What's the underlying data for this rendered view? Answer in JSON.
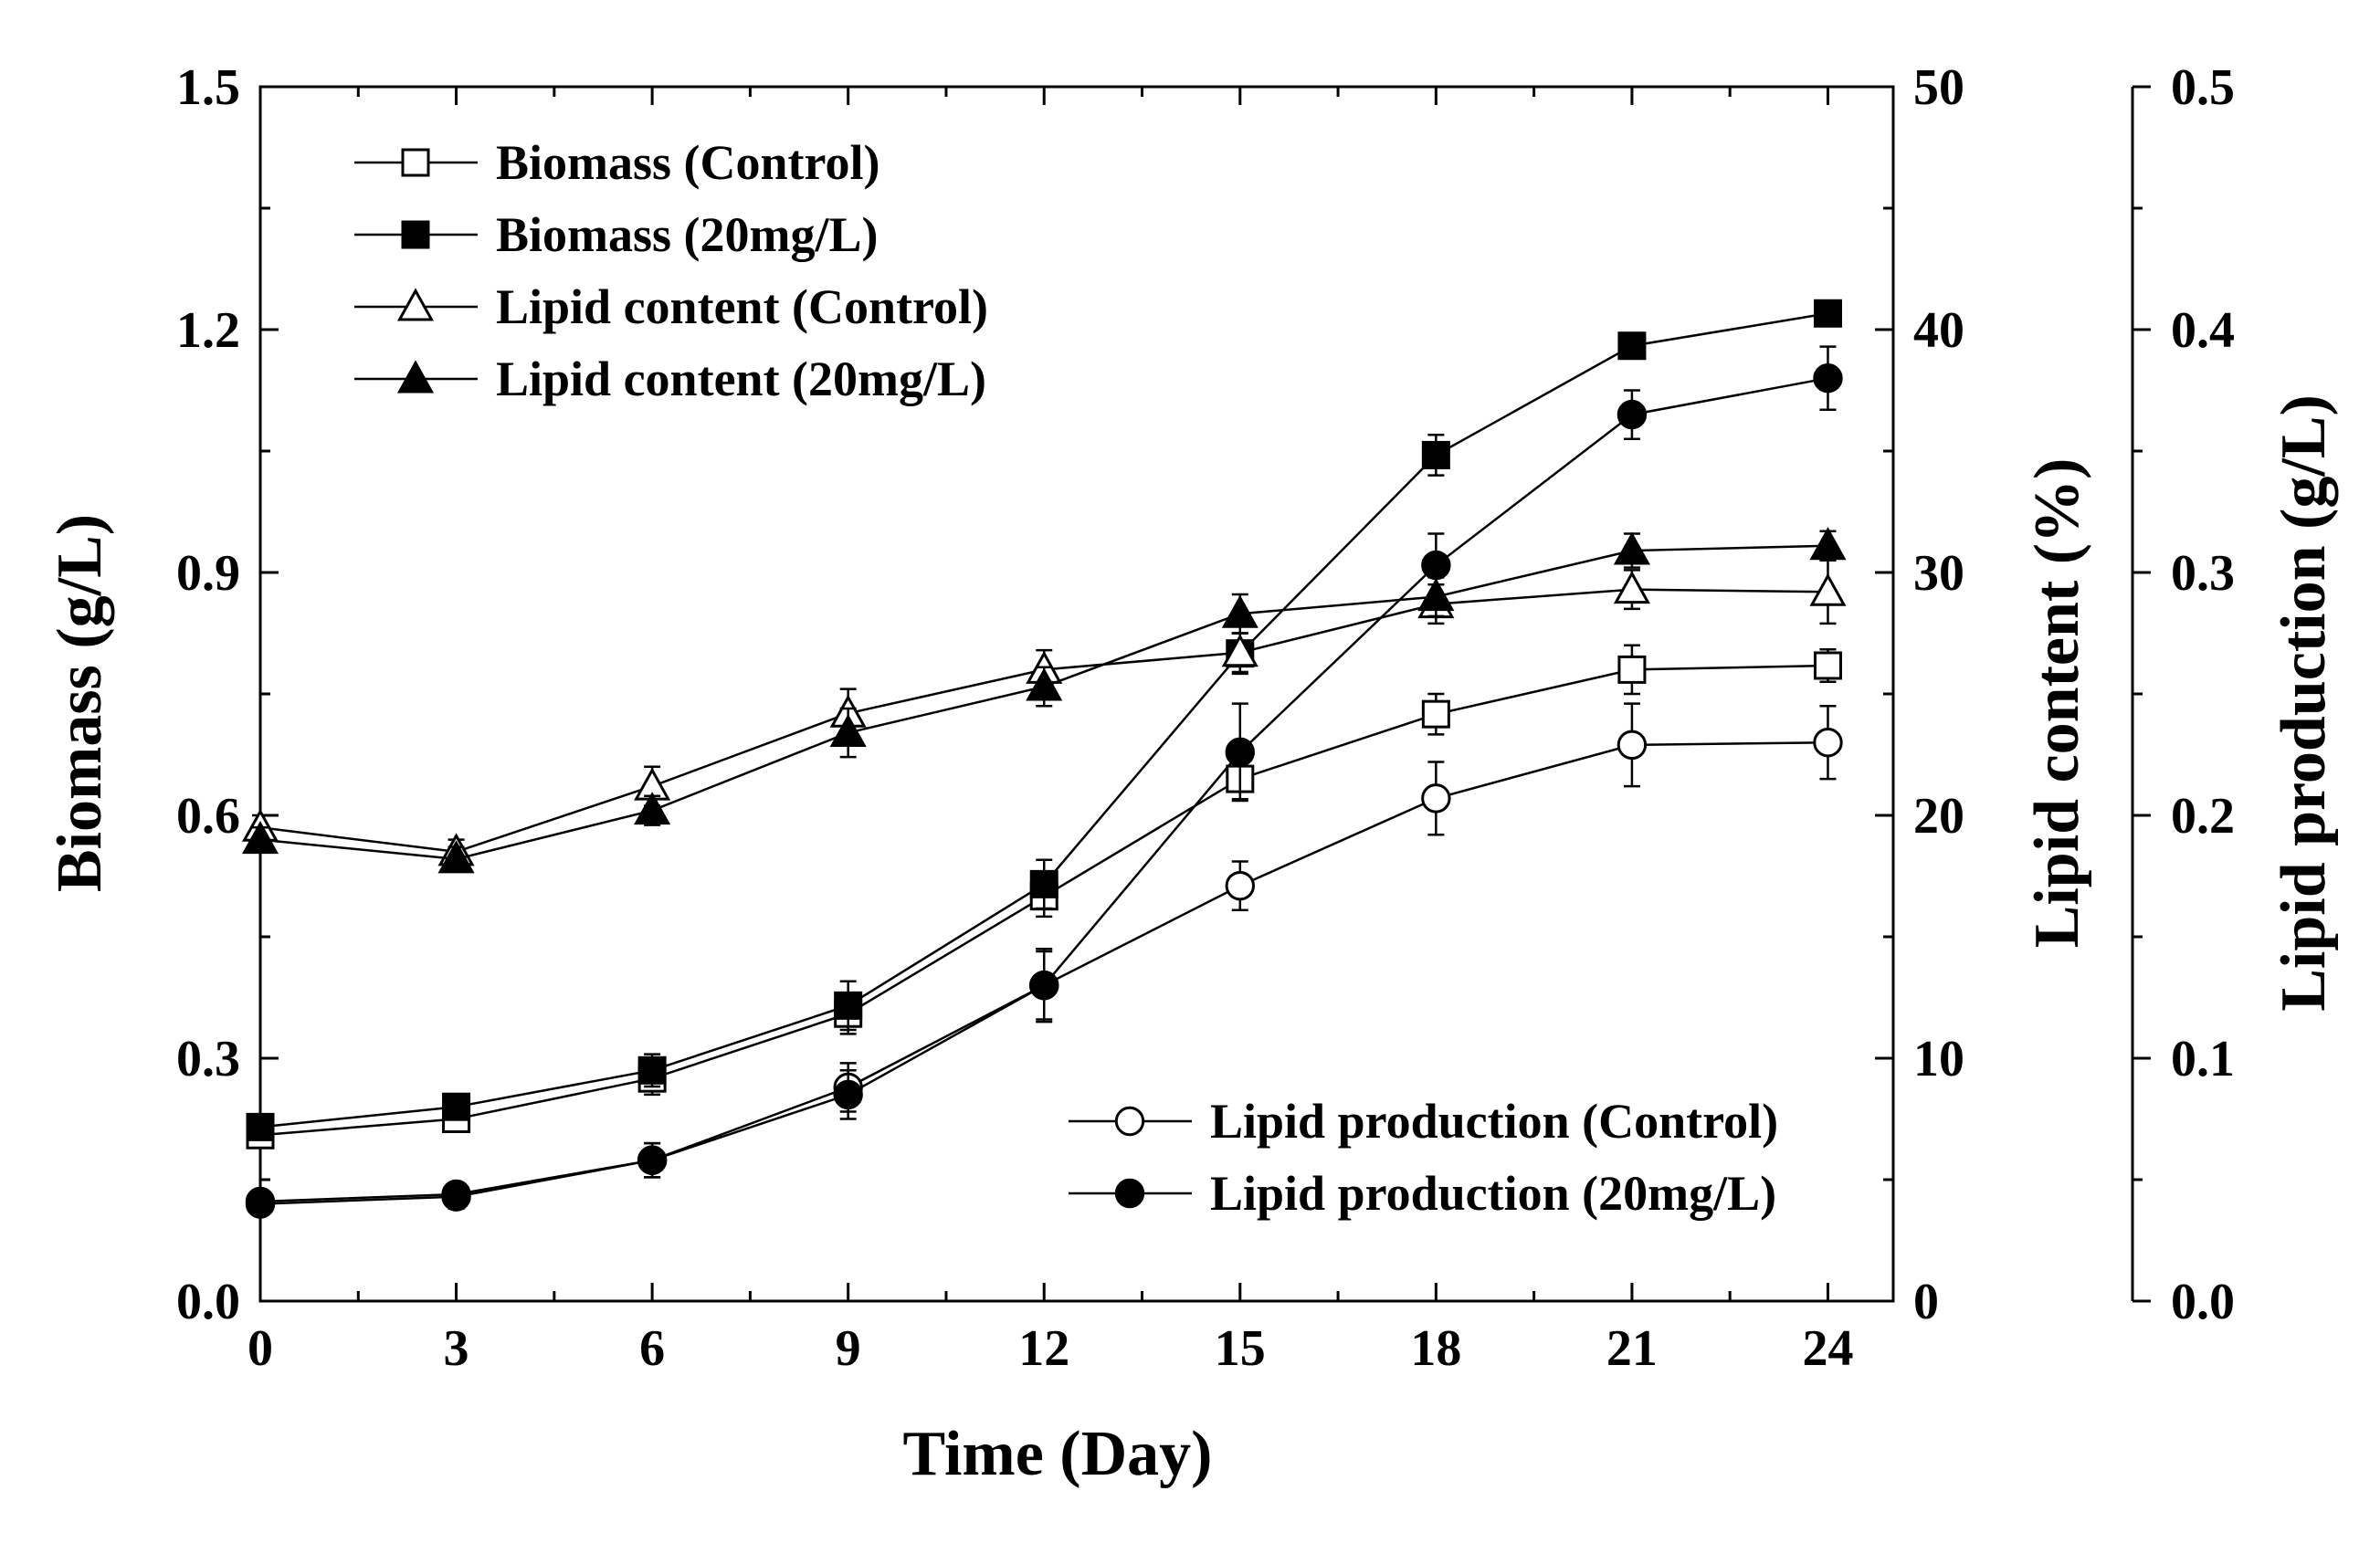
{
  "chart_data": {
    "type": "line",
    "xlabel": "Time (Day)",
    "x": [
      0,
      3,
      6,
      9,
      12,
      15,
      18,
      21,
      24
    ],
    "xlim": [
      0,
      25
    ],
    "x_ticks": [
      0,
      3,
      6,
      9,
      12,
      15,
      18,
      21,
      24
    ],
    "axes": {
      "left": {
        "label": "Biomass (g/L)",
        "lim": [
          0,
          1.5
        ],
        "ticks": [
          "0.0",
          "0.3",
          "0.6",
          "0.9",
          "1.2",
          "1.5"
        ]
      },
      "right1": {
        "label": "Lipid content (%)",
        "lim": [
          0,
          50
        ],
        "ticks": [
          "0",
          "10",
          "20",
          "30",
          "40",
          "50"
        ]
      },
      "right2": {
        "label": "Lipid production (g/L)",
        "lim": [
          0,
          0.5
        ],
        "ticks": [
          "0.0",
          "0.1",
          "0.2",
          "0.3",
          "0.4",
          "0.5"
        ]
      }
    },
    "series": [
      {
        "name": "Biomass (Control)",
        "axis": "left",
        "marker": "square-open",
        "values": [
          0.205,
          0.225,
          0.275,
          0.355,
          0.5,
          0.645,
          0.725,
          0.78,
          0.785
        ],
        "errors": [
          0.01,
          0.015,
          0.02,
          0.025,
          0.025,
          0.025,
          0.025,
          0.03,
          0.02
        ]
      },
      {
        "name": "Biomass (20mg/L)",
        "axis": "left",
        "marker": "square-filled",
        "values": [
          0.215,
          0.24,
          0.285,
          0.365,
          0.515,
          0.8,
          1.045,
          1.18,
          1.22
        ],
        "errors": [
          0.01,
          0.015,
          0.02,
          0.03,
          0.03,
          0.025,
          0.025,
          0.01,
          0.01
        ]
      },
      {
        "name": "Lipid content (Control)",
        "axis": "right1",
        "marker": "triangle-open",
        "values": [
          19.5,
          18.5,
          21.2,
          24.2,
          26.0,
          26.7,
          28.7,
          29.3,
          29.2
        ],
        "errors": [
          0.5,
          0.5,
          0.8,
          1.0,
          0.8,
          0.8,
          0.8,
          0.8,
          1.3
        ]
      },
      {
        "name": "Lipid content (20mg/L)",
        "axis": "right1",
        "marker": "triangle-filled",
        "values": [
          19.0,
          18.2,
          20.2,
          23.4,
          25.3,
          28.3,
          29.0,
          30.9,
          31.1
        ],
        "errors": [
          0.5,
          0.5,
          0.6,
          1.0,
          0.8,
          0.8,
          0.8,
          0.7,
          0.6
        ]
      },
      {
        "name": "Lipid production (Control)",
        "axis": "right2",
        "marker": "circle-open",
        "values": [
          0.04,
          0.043,
          0.058,
          0.088,
          0.13,
          0.171,
          0.207,
          0.229,
          0.23
        ],
        "errors": [
          0.004,
          0.005,
          0.007,
          0.01,
          0.014,
          0.01,
          0.015,
          0.017,
          0.015
        ]
      },
      {
        "name": "Lipid production (20mg/L)",
        "axis": "right2",
        "marker": "circle-filled",
        "values": [
          0.041,
          0.044,
          0.058,
          0.085,
          0.13,
          0.226,
          0.303,
          0.365,
          0.38
        ],
        "errors": [
          0.004,
          0.004,
          0.007,
          0.01,
          0.015,
          0.02,
          0.013,
          0.01,
          0.013
        ]
      }
    ],
    "legend": [
      {
        "placement": "top-left",
        "entries": [
          "Biomass (Control)",
          "Biomass (20mg/L)",
          "Lipid content (Control)",
          "Lipid content (20mg/L)"
        ]
      },
      {
        "placement": "bottom-right",
        "entries": [
          "Lipid production (Control)",
          "Lipid production (20mg/L)"
        ]
      }
    ],
    "grid": false
  }
}
